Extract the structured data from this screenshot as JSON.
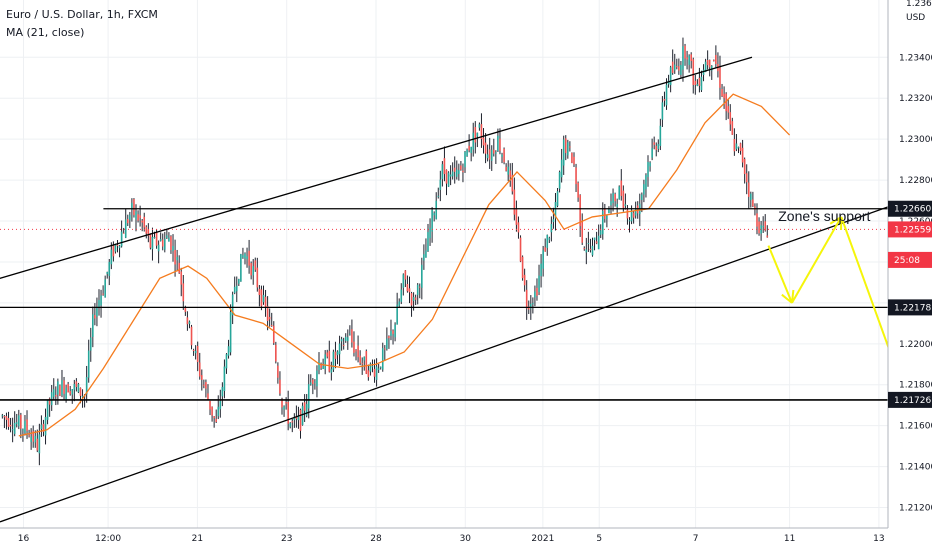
{
  "title": "Euro / U.S. Dollar, 1h, FXCM",
  "indicator": "MA (21, close)",
  "currency": "USD",
  "price_axis": {
    "min": 1.211,
    "max": 1.2368,
    "top_label_partial": "1.23600",
    "ticks": [
      "1.23400",
      "1.23200",
      "1.23000",
      "1.22800",
      "1.22600",
      "1.22400",
      "1.22200",
      "1.22000",
      "1.21800",
      "1.21600",
      "1.21400",
      "1.21200"
    ],
    "tick_values": [
      1.234,
      1.232,
      1.23,
      1.228,
      1.226,
      1.224,
      1.222,
      1.22,
      1.218,
      1.216,
      1.214,
      1.212
    ],
    "badges": [
      {
        "label": "1.22660",
        "value": 1.2266,
        "color": "#131722"
      },
      {
        "label": "1.22559",
        "value": 1.22559,
        "color": "#f23645"
      },
      {
        "label": "25:08",
        "value": 1.2241,
        "color": "#f23645"
      },
      {
        "label": "1.22178",
        "value": 1.22178,
        "color": "#131722"
      },
      {
        "label": "1.21726",
        "value": 1.21726,
        "color": "#131722"
      }
    ]
  },
  "time_axis": {
    "labels": [
      "16",
      "12:00",
      "21",
      "23",
      "28",
      "30",
      "2021",
      "5",
      "7",
      "11",
      "13"
    ],
    "positions": [
      0.5,
      2.3,
      4.2,
      6.1,
      8.0,
      9.9,
      11.55,
      12.75,
      14.8,
      16.8,
      18.7
    ]
  },
  "annotation": {
    "text": "Zone's support",
    "at_x": 16.75,
    "at_y": 1.2262
  },
  "colors": {
    "up": "#26a69a",
    "down": "#ef5350",
    "wick": "#1e222d",
    "ma": "#f57c1f",
    "arrow": "#f5f50a",
    "line": "#000000",
    "grid": "#eef0f3",
    "current": "#f23645"
  },
  "chart_data": {
    "type": "candlestick",
    "title": "Euro / U.S. Dollar, 1h, FXCM",
    "x_unit": "days since 15 Dec 2020 (1 unit = 1 day)",
    "y_unit": "USD",
    "ylim": [
      1.211,
      1.2368
    ],
    "close_series": [
      [
        0.0,
        1.2165
      ],
      [
        0.3,
        1.2162
      ],
      [
        0.6,
        1.2158
      ],
      [
        0.8,
        1.215
      ],
      [
        1.0,
        1.2168
      ],
      [
        1.2,
        1.2178
      ],
      [
        1.4,
        1.218
      ],
      [
        1.6,
        1.2178
      ],
      [
        1.8,
        1.2175
      ],
      [
        2.0,
        1.2215
      ],
      [
        2.2,
        1.2228
      ],
      [
        2.4,
        1.2245
      ],
      [
        2.6,
        1.2255
      ],
      [
        2.8,
        1.2265
      ],
      [
        3.0,
        1.226
      ],
      [
        3.2,
        1.2248
      ],
      [
        3.4,
        1.225
      ],
      [
        3.6,
        1.2252
      ],
      [
        3.8,
        1.2238
      ],
      [
        4.0,
        1.221
      ],
      [
        4.2,
        1.219
      ],
      [
        4.4,
        1.2175
      ],
      [
        4.6,
        1.216
      ],
      [
        4.8,
        1.219
      ],
      [
        5.0,
        1.223
      ],
      [
        5.2,
        1.2245
      ],
      [
        5.4,
        1.2235
      ],
      [
        5.6,
        1.222
      ],
      [
        5.8,
        1.2205
      ],
      [
        6.0,
        1.2172
      ],
      [
        6.2,
        1.216
      ],
      [
        6.4,
        1.2162
      ],
      [
        6.6,
        1.218
      ],
      [
        6.8,
        1.2192
      ],
      [
        7.0,
        1.219
      ],
      [
        7.2,
        1.2195
      ],
      [
        7.4,
        1.2205
      ],
      [
        7.6,
        1.2195
      ],
      [
        7.8,
        1.2188
      ],
      [
        8.0,
        1.2188
      ],
      [
        8.2,
        1.2196
      ],
      [
        8.4,
        1.221
      ],
      [
        8.6,
        1.2232
      ],
      [
        8.8,
        1.222
      ],
      [
        9.0,
        1.2238
      ],
      [
        9.2,
        1.2262
      ],
      [
        9.4,
        1.2285
      ],
      [
        9.6,
        1.228
      ],
      [
        9.8,
        1.2285
      ],
      [
        10.0,
        1.2298
      ],
      [
        10.2,
        1.2305
      ],
      [
        10.4,
        1.2292
      ],
      [
        10.6,
        1.23
      ],
      [
        10.8,
        1.2285
      ],
      [
        11.0,
        1.2258
      ],
      [
        11.2,
        1.222
      ],
      [
        11.4,
        1.2225
      ],
      [
        11.6,
        1.2248
      ],
      [
        11.8,
        1.2262
      ],
      [
        12.0,
        1.2298
      ],
      [
        12.2,
        1.229
      ],
      [
        12.4,
        1.225
      ],
      [
        12.6,
        1.2245
      ],
      [
        12.8,
        1.226
      ],
      [
        13.0,
        1.2268
      ],
      [
        13.2,
        1.2275
      ],
      [
        13.4,
        1.2262
      ],
      [
        13.6,
        1.2268
      ],
      [
        13.8,
        1.229
      ],
      [
        14.0,
        1.23
      ],
      [
        14.2,
        1.233
      ],
      [
        14.4,
        1.2335
      ],
      [
        14.6,
        1.2345
      ],
      [
        14.8,
        1.2325
      ],
      [
        15.0,
        1.2338
      ],
      [
        15.2,
        1.234
      ],
      [
        15.4,
        1.232
      ],
      [
        15.6,
        1.2298
      ],
      [
        15.8,
        1.229
      ],
      [
        16.0,
        1.2268
      ],
      [
        16.2,
        1.2255
      ],
      [
        16.35,
        1.2256
      ]
    ],
    "ma21_series": [
      [
        0.4,
        1.2155
      ],
      [
        1.0,
        1.2158
      ],
      [
        1.6,
        1.2168
      ],
      [
        2.2,
        1.2188
      ],
      [
        2.8,
        1.221
      ],
      [
        3.4,
        1.2232
      ],
      [
        4.0,
        1.2238
      ],
      [
        4.4,
        1.2232
      ],
      [
        5.0,
        1.2214
      ],
      [
        5.6,
        1.221
      ],
      [
        6.2,
        1.22
      ],
      [
        6.8,
        1.219
      ],
      [
        7.4,
        1.2188
      ],
      [
        8.0,
        1.219
      ],
      [
        8.6,
        1.2196
      ],
      [
        9.2,
        1.2212
      ],
      [
        9.8,
        1.224
      ],
      [
        10.4,
        1.2268
      ],
      [
        11.0,
        1.2284
      ],
      [
        11.6,
        1.227
      ],
      [
        12.0,
        1.2256
      ],
      [
        12.6,
        1.2262
      ],
      [
        13.2,
        1.2264
      ],
      [
        13.8,
        1.2266
      ],
      [
        14.4,
        1.2285
      ],
      [
        15.0,
        1.2308
      ],
      [
        15.6,
        1.2322
      ],
      [
        16.2,
        1.2316
      ],
      [
        16.8,
        1.2302
      ]
    ],
    "horizontal_levels": [
      1.2266,
      1.22178,
      1.21726
    ],
    "current_price": 1.22559,
    "channel_upper": [
      [
        -0.3,
        1.223
      ],
      [
        16.0,
        1.234
      ]
    ],
    "channel_lower": [
      [
        0.0,
        1.2113
      ],
      [
        20.5,
        1.228
      ]
    ],
    "projection_arrow": [
      [
        16.35,
        1.2248
      ],
      [
        16.85,
        1.222
      ],
      [
        17.9,
        1.2262
      ],
      [
        19.3,
        1.2173
      ]
    ]
  }
}
